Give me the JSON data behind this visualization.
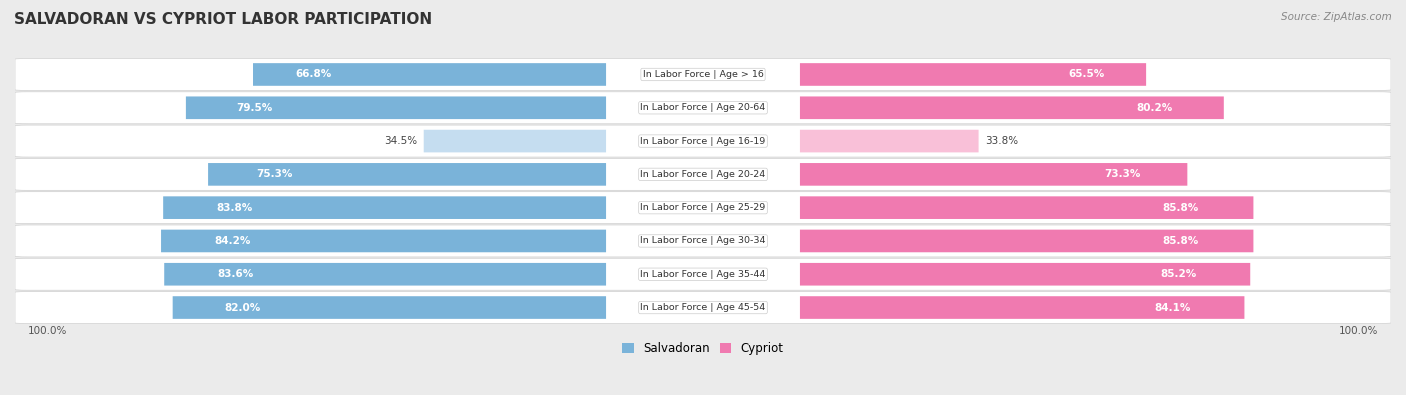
{
  "title": "SALVADORAN VS CYPRIOT LABOR PARTICIPATION",
  "source": "Source: ZipAtlas.com",
  "categories": [
    "In Labor Force | Age > 16",
    "In Labor Force | Age 20-64",
    "In Labor Force | Age 16-19",
    "In Labor Force | Age 20-24",
    "In Labor Force | Age 25-29",
    "In Labor Force | Age 30-34",
    "In Labor Force | Age 35-44",
    "In Labor Force | Age 45-54"
  ],
  "salvadoran": [
    66.8,
    79.5,
    34.5,
    75.3,
    83.8,
    84.2,
    83.6,
    82.0
  ],
  "cypriot": [
    65.5,
    80.2,
    33.8,
    73.3,
    85.8,
    85.8,
    85.2,
    84.1
  ],
  "salvadoran_color_high": "#7ab3d9",
  "salvadoran_color_low": "#c5ddf0",
  "cypriot_color_high": "#f07ab0",
  "cypriot_color_low": "#f9c0d8",
  "bg_color": "#ebebeb",
  "threshold": 60,
  "axis_label": "100.0%",
  "legend_salvadoran": "Salvadoran",
  "legend_cypriot": "Cypriot"
}
